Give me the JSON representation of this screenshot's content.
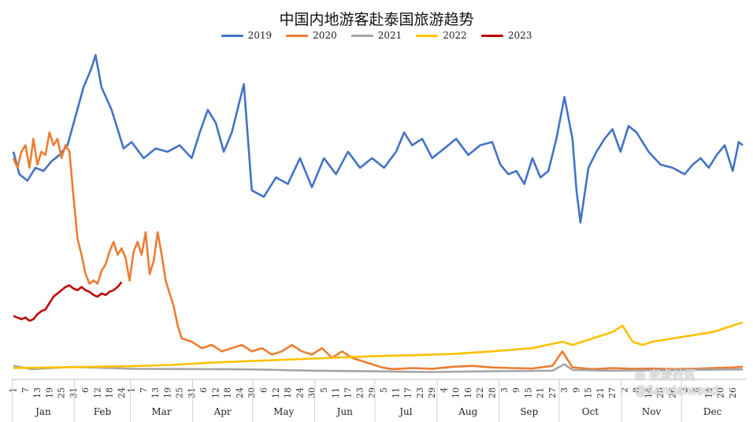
{
  "chart_data": {
    "type": "line",
    "title": "中国内地游客赴泰国旅游趋势",
    "xlabel": "",
    "ylabel": "",
    "ylim": [
      0,
      1000
    ],
    "grid": false,
    "legend_position": "top",
    "series_colors": {
      "2019": "#4472C4",
      "2020": "#ED7D31",
      "2021": "#A5A5A5",
      "2022": "#FFC000",
      "2023": "#C00000"
    },
    "months": [
      "Jan",
      "Feb",
      "Mar",
      "Apr",
      "May",
      "Jun",
      "Jul",
      "Aug",
      "Sep",
      "Oct",
      "Nov",
      "Dec"
    ],
    "ticks": [
      {
        "label": "1",
        "day": 1
      },
      {
        "label": "7",
        "day": 7
      },
      {
        "label": "13",
        "day": 13
      },
      {
        "label": "19",
        "day": 19
      },
      {
        "label": "25",
        "day": 25
      },
      {
        "label": "31",
        "day": 31
      },
      {
        "label": "6",
        "day": 37
      },
      {
        "label": "12",
        "day": 43
      },
      {
        "label": "18",
        "day": 49
      },
      {
        "label": "24",
        "day": 55
      },
      {
        "label": "1",
        "day": 60
      },
      {
        "label": "7",
        "day": 66
      },
      {
        "label": "13",
        "day": 72
      },
      {
        "label": "19",
        "day": 78
      },
      {
        "label": "25",
        "day": 84
      },
      {
        "label": "31",
        "day": 90
      },
      {
        "label": "6",
        "day": 96
      },
      {
        "label": "12",
        "day": 102
      },
      {
        "label": "18",
        "day": 108
      },
      {
        "label": "24",
        "day": 114
      },
      {
        "label": "30",
        "day": 120
      },
      {
        "label": "6",
        "day": 126
      },
      {
        "label": "12",
        "day": 132
      },
      {
        "label": "18",
        "day": 138
      },
      {
        "label": "24",
        "day": 144
      },
      {
        "label": "30",
        "day": 150
      },
      {
        "label": "5",
        "day": 156
      },
      {
        "label": "11",
        "day": 162
      },
      {
        "label": "17",
        "day": 168
      },
      {
        "label": "23",
        "day": 174
      },
      {
        "label": "29",
        "day": 180
      },
      {
        "label": "5",
        "day": 186
      },
      {
        "label": "11",
        "day": 192
      },
      {
        "label": "17",
        "day": 198
      },
      {
        "label": "23",
        "day": 204
      },
      {
        "label": "29",
        "day": 210
      },
      {
        "label": "4",
        "day": 216
      },
      {
        "label": "10",
        "day": 222
      },
      {
        "label": "16",
        "day": 228
      },
      {
        "label": "22",
        "day": 234
      },
      {
        "label": "28",
        "day": 240
      },
      {
        "label": "3",
        "day": 246
      },
      {
        "label": "9",
        "day": 252
      },
      {
        "label": "15",
        "day": 258
      },
      {
        "label": "21",
        "day": 264
      },
      {
        "label": "27",
        "day": 270
      },
      {
        "label": "3",
        "day": 276
      },
      {
        "label": "9",
        "day": 282
      },
      {
        "label": "15",
        "day": 288
      },
      {
        "label": "21",
        "day": 294
      },
      {
        "label": "27",
        "day": 300
      },
      {
        "label": "2",
        "day": 306
      },
      {
        "label": "8",
        "day": 312
      },
      {
        "label": "14",
        "day": 318
      },
      {
        "label": "20",
        "day": 324
      },
      {
        "label": "26",
        "day": 330
      },
      {
        "label": "2",
        "day": 336
      },
      {
        "label": "8",
        "day": 342
      },
      {
        "label": "14",
        "day": 348
      },
      {
        "label": "20",
        "day": 354
      },
      {
        "label": "26",
        "day": 360
      }
    ],
    "series": [
      {
        "name": "2019",
        "x": [
          1,
          4,
          8,
          12,
          16,
          20,
          24,
          28,
          32,
          36,
          40,
          42,
          45,
          50,
          56,
          60,
          66,
          72,
          78,
          84,
          90,
          94,
          98,
          102,
          106,
          110,
          114,
          116,
          120,
          126,
          132,
          138,
          144,
          150,
          156,
          162,
          168,
          174,
          180,
          186,
          192,
          196,
          200,
          205,
          210,
          216,
          222,
          228,
          234,
          240,
          244,
          248,
          252,
          256,
          260,
          264,
          268,
          272,
          276,
          280,
          282,
          284,
          288,
          292,
          296,
          300,
          304,
          308,
          312,
          318,
          324,
          330,
          336,
          340,
          344,
          348,
          352,
          356,
          360,
          363,
          365
        ],
        "values": [
          700,
          630,
          610,
          650,
          640,
          670,
          690,
          720,
          810,
          900,
          960,
          1000,
          900,
          830,
          710,
          730,
          680,
          710,
          700,
          720,
          680,
          760,
          830,
          790,
          700,
          760,
          860,
          910,
          580,
          560,
          620,
          600,
          680,
          590,
          680,
          630,
          700,
          650,
          680,
          650,
          700,
          760,
          720,
          740,
          680,
          710,
          740,
          690,
          720,
          730,
          660,
          630,
          640,
          600,
          680,
          620,
          640,
          740,
          870,
          740,
          580,
          480,
          650,
          700,
          740,
          770,
          700,
          780,
          760,
          700,
          660,
          650,
          630,
          660,
          680,
          650,
          690,
          720,
          640,
          730,
          720
        ]
      },
      {
        "name": "2020",
        "x": [
          1,
          3,
          5,
          7,
          9,
          11,
          13,
          15,
          17,
          19,
          21,
          23,
          25,
          27,
          29,
          31,
          33,
          35,
          37,
          39,
          41,
          43,
          45,
          47,
          49,
          51,
          53,
          55,
          57,
          59,
          61,
          63,
          65,
          67,
          69,
          71,
          73,
          75,
          77,
          79,
          81,
          83,
          85,
          90,
          95,
          100,
          105,
          110,
          115,
          120,
          125,
          130,
          135,
          140,
          145,
          150,
          155,
          160,
          165,
          170,
          175,
          180,
          185,
          190,
          200,
          210,
          220,
          230,
          240,
          250,
          260,
          270,
          275,
          280,
          290,
          300,
          310,
          320,
          330,
          340,
          350,
          360,
          365
        ],
        "values": [
          680,
          650,
          700,
          720,
          650,
          740,
          660,
          700,
          690,
          760,
          720,
          740,
          680,
          720,
          700,
          560,
          430,
          380,
          320,
          290,
          300,
          290,
          330,
          350,
          390,
          420,
          380,
          400,
          370,
          300,
          390,
          420,
          380,
          450,
          320,
          360,
          450,
          380,
          300,
          260,
          220,
          160,
          120,
          110,
          90,
          100,
          80,
          90,
          100,
          80,
          90,
          70,
          80,
          100,
          80,
          70,
          90,
          60,
          80,
          60,
          50,
          40,
          30,
          25,
          28,
          26,
          32,
          35,
          30,
          28,
          27,
          35,
          80,
          30,
          25,
          28,
          26,
          27,
          25,
          26,
          28,
          30,
          32
        ]
      },
      {
        "name": "2021",
        "x": [
          1,
          10,
          20,
          30,
          40,
          50,
          60,
          90,
          120,
          150,
          180,
          210,
          240,
          270,
          276,
          280,
          300,
          330,
          365
        ],
        "values": [
          35,
          25,
          28,
          32,
          30,
          28,
          26,
          25,
          24,
          20,
          18,
          16,
          18,
          20,
          40,
          22,
          20,
          22,
          24
        ]
      },
      {
        "name": "2022",
        "x": [
          1,
          20,
          40,
          60,
          80,
          100,
          120,
          140,
          160,
          180,
          200,
          220,
          240,
          260,
          275,
          280,
          290,
          300,
          305,
          310,
          315,
          320,
          330,
          340,
          350,
          360,
          365
        ],
        "values": [
          28,
          30,
          32,
          34,
          38,
          45,
          50,
          55,
          60,
          65,
          68,
          72,
          80,
          90,
          110,
          100,
          120,
          140,
          160,
          110,
          100,
          110,
          120,
          130,
          140,
          160,
          170
        ]
      },
      {
        "name": "2023",
        "x": [
          1,
          3,
          5,
          7,
          9,
          11,
          13,
          15,
          17,
          19,
          21,
          23,
          25,
          27,
          29,
          31,
          33,
          35,
          37,
          39,
          41,
          43,
          45,
          47,
          49,
          51,
          53,
          55
        ],
        "values": [
          190,
          185,
          180,
          185,
          175,
          180,
          195,
          205,
          210,
          230,
          250,
          260,
          270,
          280,
          285,
          275,
          270,
          280,
          270,
          265,
          255,
          250,
          260,
          255,
          265,
          270,
          280,
          295
        ]
      }
    ]
  }
}
